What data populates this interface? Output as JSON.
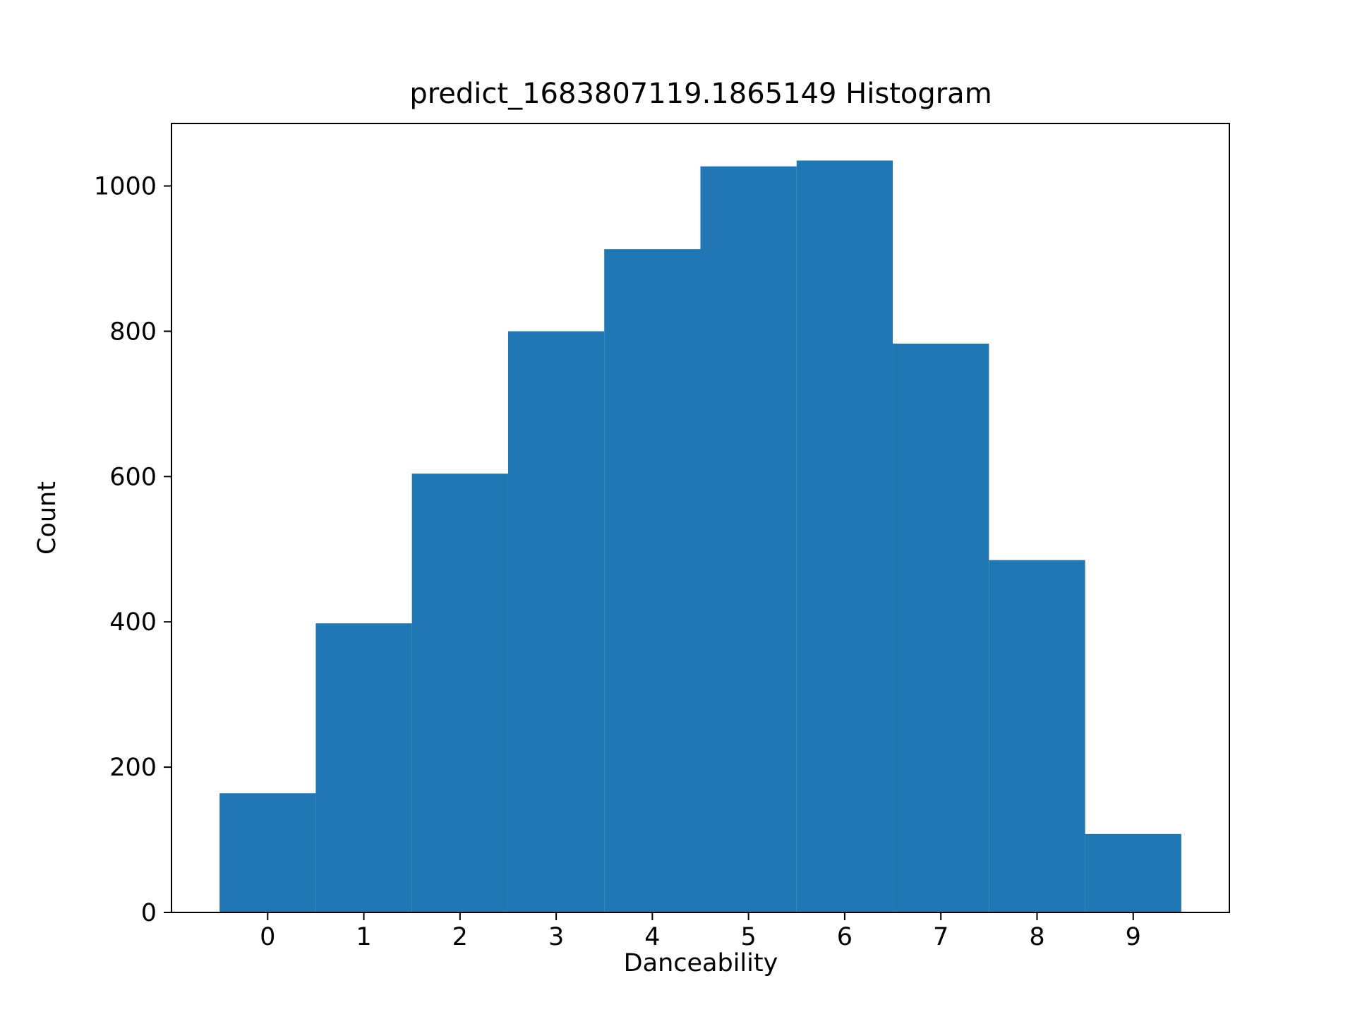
{
  "chart_data": {
    "type": "bar",
    "title": "predict_1683807119.1865149 Histogram",
    "xlabel": "Danceability",
    "ylabel": "Count",
    "categories": [
      "0",
      "1",
      "2",
      "3",
      "4",
      "5",
      "6",
      "7",
      "8",
      "9"
    ],
    "bins": [
      {
        "x_start": -0.5,
        "x_end": 0.5,
        "value": 164
      },
      {
        "x_start": 0.5,
        "x_end": 1.5,
        "value": 398
      },
      {
        "x_start": 1.5,
        "x_end": 2.5,
        "value": 604
      },
      {
        "x_start": 2.5,
        "x_end": 3.5,
        "value": 800
      },
      {
        "x_start": 3.5,
        "x_end": 4.5,
        "value": 913
      },
      {
        "x_start": 4.5,
        "x_end": 5.5,
        "value": 1027
      },
      {
        "x_start": 5.5,
        "x_end": 6.5,
        "value": 1035
      },
      {
        "x_start": 6.5,
        "x_end": 7.5,
        "value": 783
      },
      {
        "x_start": 7.5,
        "x_end": 8.5,
        "value": 485
      },
      {
        "x_start": 8.5,
        "x_end": 9.5,
        "value": 108
      }
    ],
    "xlim": [
      -1.0,
      10.0
    ],
    "ylim": [
      0,
      1086
    ],
    "xticks": [
      0,
      1,
      2,
      3,
      4,
      5,
      6,
      7,
      8,
      9
    ],
    "xtick_labels": [
      "0",
      "1",
      "2",
      "3",
      "4",
      "5",
      "6",
      "7",
      "8",
      "9"
    ],
    "yticks": [
      0,
      200,
      400,
      600,
      800,
      1000
    ],
    "ytick_labels": [
      "0",
      "200",
      "400",
      "600",
      "800",
      "1000"
    ],
    "grid": false,
    "legend": "none",
    "bar_color": "#2077b4"
  }
}
